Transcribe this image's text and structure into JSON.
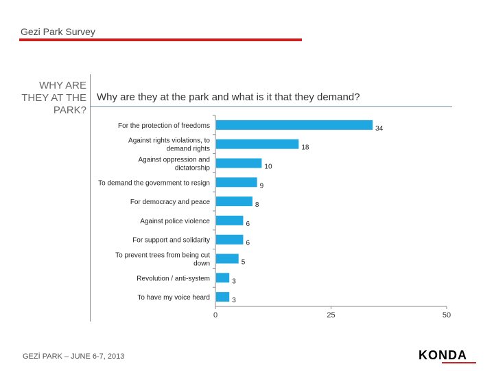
{
  "header": {
    "title": "Gezi Park Survey",
    "rule_color": "#cc1f1f"
  },
  "section": {
    "title_lines": [
      "WHY ARE",
      "THEY AT THE",
      "PARK?"
    ]
  },
  "footer": {
    "text": "GEZİ PARK – JUNE 6-7, 2013"
  },
  "logo": {
    "text": "KONDA",
    "accent_color": "#cc1f1f"
  },
  "chart_data": {
    "type": "bar",
    "orientation": "horizontal",
    "title": "Why are they at the park and what is it that they demand?",
    "categories": [
      "For the protection of freedoms",
      "Against rights violations, to demand rights",
      "Against oppression and dictatorship",
      "To demand the government to resign",
      "For democracy and peace",
      "Against police violence",
      "For support and solidarity",
      "To prevent trees from being cut down",
      "Revolution / anti-system",
      "To have my voice heard"
    ],
    "values": [
      34,
      18,
      10,
      9,
      8,
      6,
      6,
      5,
      3,
      3
    ],
    "xlim": [
      0,
      50
    ],
    "xticks": [
      0,
      25,
      50
    ],
    "bar_color": "#1ea7e1"
  }
}
